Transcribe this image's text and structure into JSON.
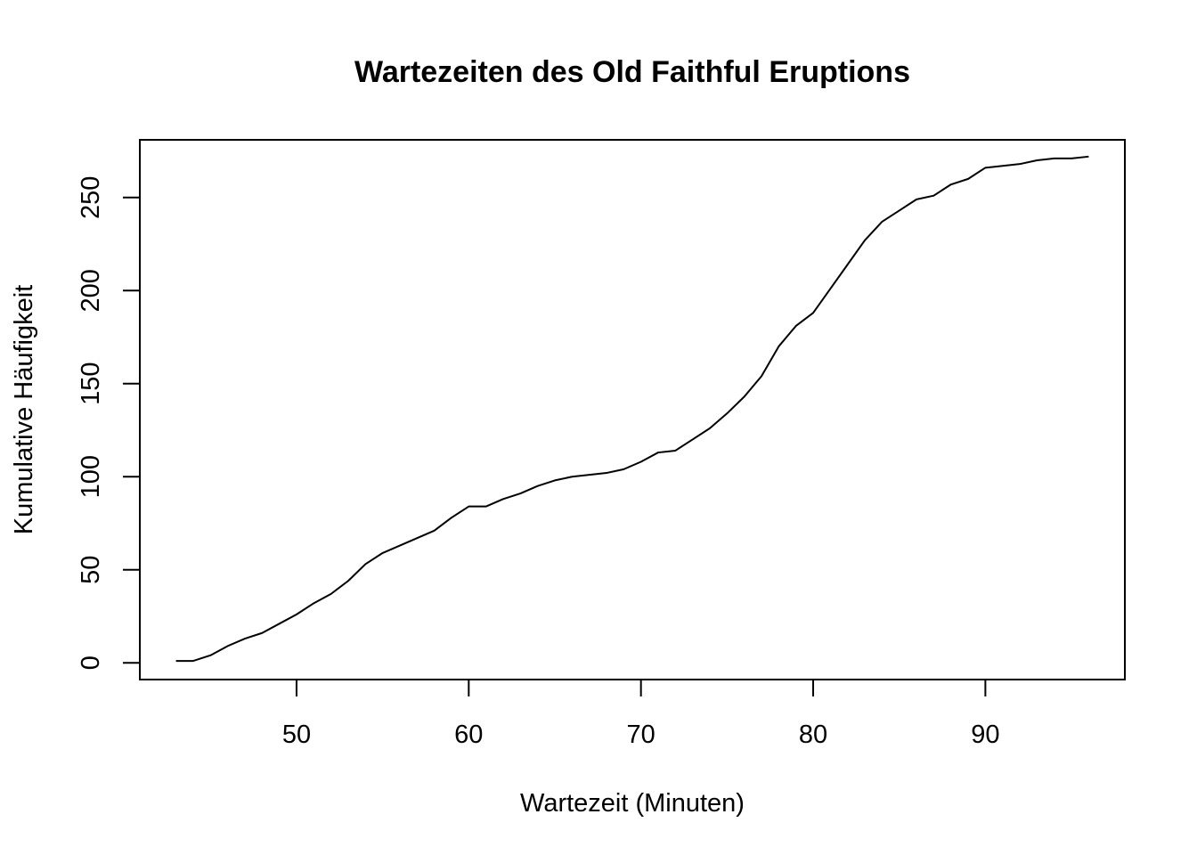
{
  "chart_data": {
    "type": "line",
    "title": "Wartezeiten des Old Faithful Eruptions",
    "xlabel": "Wartezeit (Minuten)",
    "ylabel": "Kumulative Häufigkeit",
    "xlim": [
      40.9,
      98.1
    ],
    "ylim": [
      -9,
      281
    ],
    "x_ticks": [
      50,
      60,
      70,
      80,
      90
    ],
    "x_tick_labels": [
      "50",
      "60",
      "70",
      "80",
      "90"
    ],
    "y_ticks": [
      0,
      50,
      100,
      150,
      200,
      250
    ],
    "y_tick_labels": [
      "0",
      "50",
      "100",
      "150",
      "200",
      "250"
    ],
    "grid": false,
    "legend": "none",
    "line_color": "#000000",
    "series": [
      {
        "x": [
          43,
          44,
          45,
          46,
          47,
          48,
          49,
          50,
          51,
          52,
          53,
          54,
          55,
          56,
          57,
          58,
          59,
          60,
          61,
          62,
          63,
          64,
          65,
          66,
          67,
          68,
          69,
          70,
          71,
          72,
          73,
          74,
          75,
          76,
          77,
          78,
          79,
          80,
          81,
          82,
          83,
          84,
          85,
          86,
          87,
          88,
          89,
          90,
          91,
          92,
          93,
          94,
          95,
          96
        ],
        "y": [
          1,
          1,
          4,
          9,
          13,
          16,
          21,
          26,
          32,
          37,
          44,
          53,
          59,
          63,
          67,
          71,
          78,
          84,
          84,
          88,
          91,
          95,
          98,
          100,
          101,
          102,
          104,
          108,
          113,
          114,
          120,
          126,
          134,
          143,
          154,
          170,
          181,
          188,
          201,
          214,
          227,
          237,
          243,
          249,
          251,
          257,
          260,
          266,
          267,
          268,
          270,
          271,
          271,
          272
        ]
      }
    ]
  }
}
